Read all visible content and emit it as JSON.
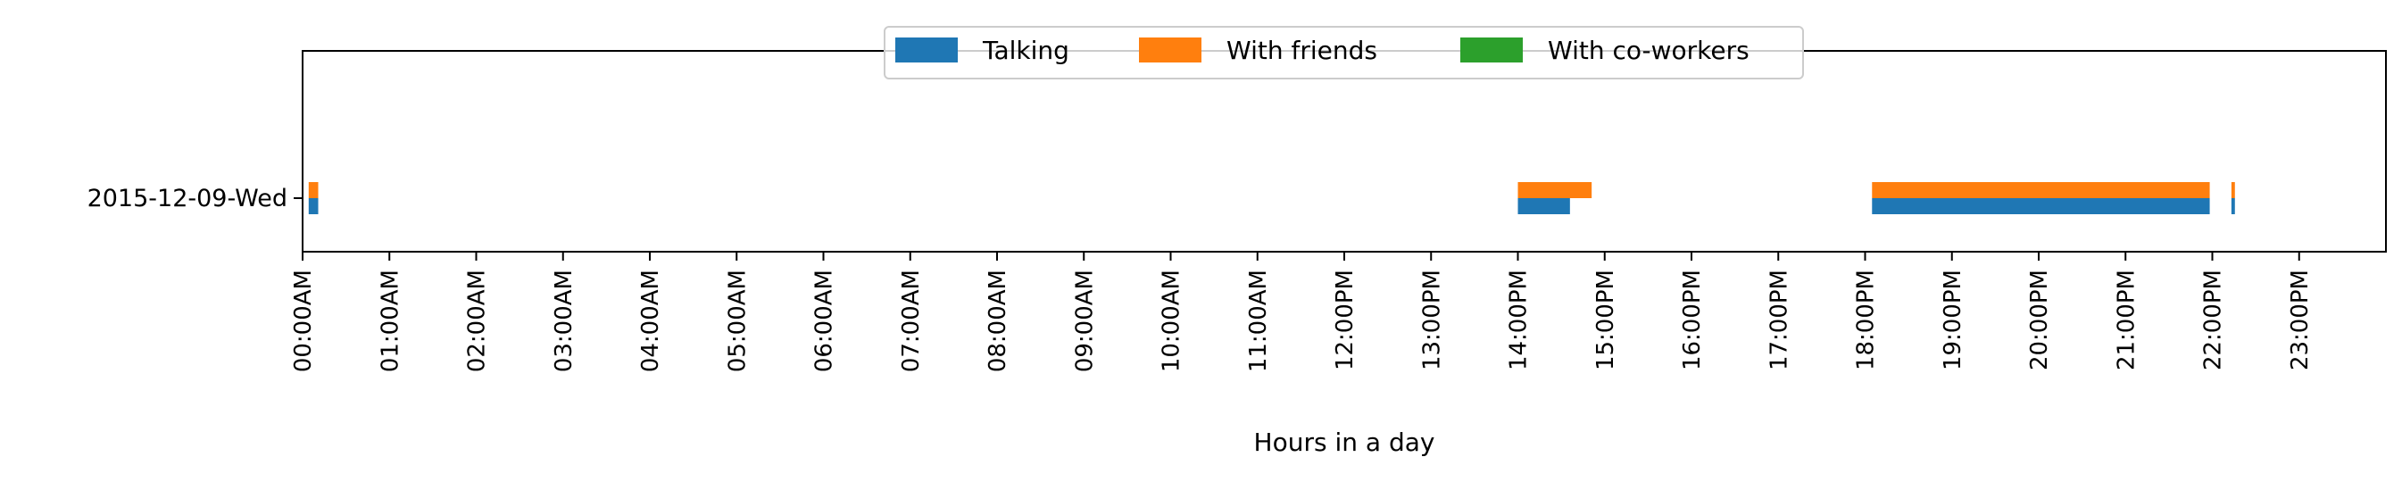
{
  "chart_data": {
    "type": "bar",
    "orientation": "horizontal",
    "title": "",
    "xlabel": "Hours in a day",
    "ylabel": "",
    "xlim": [
      0,
      24
    ],
    "x_ticks": [
      0,
      1,
      2,
      3,
      4,
      5,
      6,
      7,
      8,
      9,
      10,
      11,
      12,
      13,
      14,
      15,
      16,
      17,
      18,
      19,
      20,
      21,
      22,
      23
    ],
    "x_tick_labels": [
      "00:00AM",
      "01:00AM",
      "02:00AM",
      "03:00AM",
      "04:00AM",
      "05:00AM",
      "06:00AM",
      "07:00AM",
      "08:00AM",
      "09:00AM",
      "10:00AM",
      "11:00AM",
      "12:00PM",
      "13:00PM",
      "14:00PM",
      "15:00PM",
      "16:00PM",
      "17:00PM",
      "18:00PM",
      "19:00PM",
      "20:00PM",
      "21:00PM",
      "22:00PM",
      "23:00PM"
    ],
    "categories": [
      "2015-12-09-Wed"
    ],
    "legend_position": "top-center",
    "grid": false,
    "series": [
      {
        "name": "Talking",
        "color": "#1f77b4",
        "intervals": [
          [
            0.07,
            0.18
          ],
          [
            14.0,
            14.6
          ],
          [
            18.08,
            21.97
          ],
          [
            22.22,
            22.26
          ]
        ]
      },
      {
        "name": "With friends",
        "color": "#ff7f0e",
        "intervals": [
          [
            0.07,
            0.18
          ],
          [
            14.0,
            14.85
          ],
          [
            18.08,
            21.97
          ],
          [
            22.22,
            22.26
          ]
        ]
      },
      {
        "name": "With co-workers",
        "color": "#2ca02c",
        "intervals": []
      }
    ]
  }
}
